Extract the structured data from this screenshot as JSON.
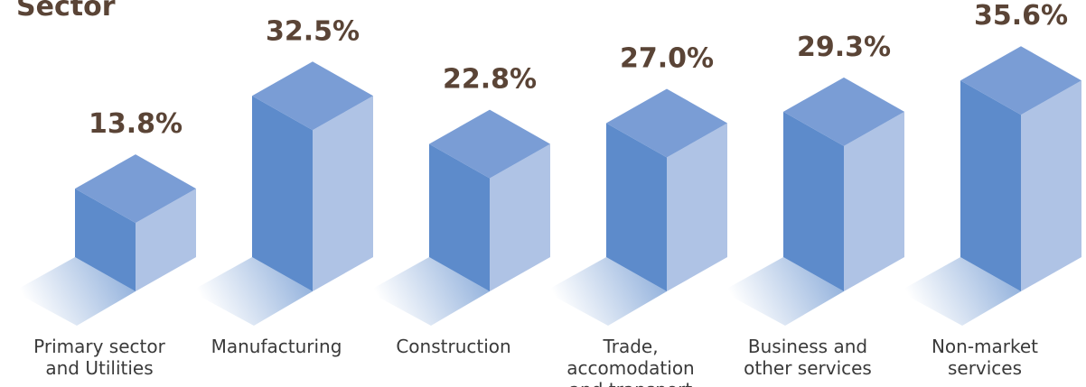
{
  "chart_data": {
    "type": "bar3d",
    "title": "Sector",
    "categories": [
      "Primary sector\nand Utilities",
      "Manufacturing",
      "Construction",
      "Trade, accomodation\nand transport",
      "Business and\nother services",
      "Non-market\nservices"
    ],
    "values": [
      13.8,
      32.5,
      22.8,
      27.0,
      29.3,
      35.6
    ],
    "value_labels": [
      "13.8%",
      "32.5%",
      "22.8%",
      "27.0%",
      "29.3%",
      "35.6%"
    ],
    "colors": {
      "front": "#5d8bcb",
      "side": "#afc3e5",
      "top": "#7a9dd5"
    }
  }
}
